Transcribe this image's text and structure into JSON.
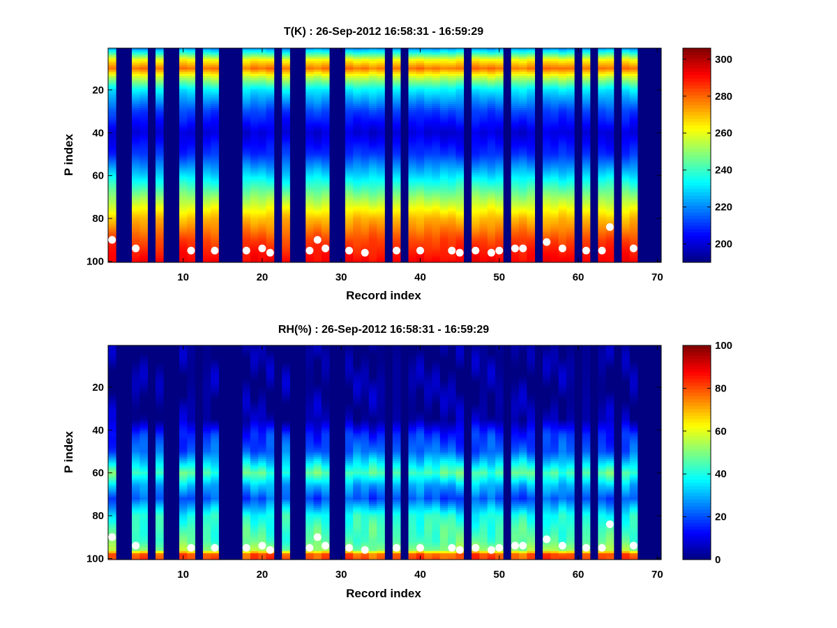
{
  "chart_data": [
    {
      "type": "heatmap",
      "title": "T(K) : 26-Sep-2012 16:58:31 - 16:59:29",
      "xlabel": "Record index",
      "ylabel": "P index",
      "xlim": [
        0.5,
        70.5
      ],
      "ylim": [
        0.5,
        100.5
      ],
      "y_reversed": true,
      "xticks": [
        10,
        20,
        30,
        40,
        50,
        60,
        70
      ],
      "yticks": [
        20,
        40,
        60,
        80,
        100
      ],
      "colormap": "jet",
      "clim": [
        190,
        306
      ],
      "colorbar_ticks": [
        200,
        220,
        240,
        260,
        280,
        300
      ],
      "valid_records": [
        1,
        4,
        5,
        7,
        10,
        11,
        13,
        14,
        18,
        19,
        20,
        21,
        23,
        26,
        27,
        28,
        31,
        32,
        33,
        34,
        35,
        37,
        39,
        40,
        41,
        42,
        43,
        44,
        45,
        47,
        48,
        49,
        50,
        52,
        53,
        54,
        56,
        57,
        58,
        59,
        61,
        63,
        64,
        66,
        67
      ],
      "profile_anchors": [
        {
          "p": 1,
          "value": 224
        },
        {
          "p": 6,
          "value": 262
        },
        {
          "p": 10,
          "value": 278
        },
        {
          "p": 14,
          "value": 256
        },
        {
          "p": 20,
          "value": 232
        },
        {
          "p": 30,
          "value": 212
        },
        {
          "p": 40,
          "value": 200
        },
        {
          "p": 50,
          "value": 210
        },
        {
          "p": 60,
          "value": 230
        },
        {
          "p": 70,
          "value": 250
        },
        {
          "p": 80,
          "value": 270
        },
        {
          "p": 90,
          "value": 284
        },
        {
          "p": 100,
          "value": 292
        }
      ],
      "surface_points": [
        {
          "x": 1,
          "y": 90
        },
        {
          "x": 4,
          "y": 94
        },
        {
          "x": 11,
          "y": 95
        },
        {
          "x": 14,
          "y": 95
        },
        {
          "x": 18,
          "y": 95
        },
        {
          "x": 20,
          "y": 94
        },
        {
          "x": 21,
          "y": 96
        },
        {
          "x": 26,
          "y": 95
        },
        {
          "x": 27,
          "y": 90
        },
        {
          "x": 28,
          "y": 94
        },
        {
          "x": 31,
          "y": 95
        },
        {
          "x": 33,
          "y": 96
        },
        {
          "x": 37,
          "y": 95
        },
        {
          "x": 40,
          "y": 95
        },
        {
          "x": 44,
          "y": 95
        },
        {
          "x": 45,
          "y": 96
        },
        {
          "x": 47,
          "y": 95
        },
        {
          "x": 49,
          "y": 96
        },
        {
          "x": 50,
          "y": 95
        },
        {
          "x": 52,
          "y": 94
        },
        {
          "x": 53,
          "y": 94
        },
        {
          "x": 56,
          "y": 91
        },
        {
          "x": 58,
          "y": 94
        },
        {
          "x": 61,
          "y": 95
        },
        {
          "x": 63,
          "y": 95
        },
        {
          "x": 64,
          "y": 84
        },
        {
          "x": 67,
          "y": 94
        }
      ]
    },
    {
      "type": "heatmap",
      "title": "RH(%) : 26-Sep-2012 16:58:31 - 16:59:29",
      "xlabel": "Record index",
      "ylabel": "P index",
      "xlim": [
        0.5,
        70.5
      ],
      "ylim": [
        0.5,
        100.5
      ],
      "y_reversed": true,
      "xticks": [
        10,
        20,
        30,
        40,
        50,
        60,
        70
      ],
      "yticks": [
        20,
        40,
        60,
        80,
        100
      ],
      "colormap": "jet",
      "clim": [
        0,
        100
      ],
      "colorbar_ticks": [
        0,
        20,
        40,
        60,
        80,
        100
      ],
      "valid_records": [
        1,
        4,
        5,
        7,
        10,
        11,
        13,
        14,
        18,
        19,
        20,
        21,
        23,
        26,
        27,
        28,
        31,
        32,
        33,
        34,
        35,
        37,
        39,
        40,
        41,
        42,
        43,
        44,
        45,
        47,
        48,
        49,
        50,
        52,
        53,
        54,
        56,
        57,
        58,
        59,
        61,
        63,
        64,
        66,
        67
      ],
      "profile_anchors": [
        {
          "p": 1,
          "value": 2
        },
        {
          "p": 35,
          "value": 4
        },
        {
          "p": 42,
          "value": 16
        },
        {
          "p": 50,
          "value": 22
        },
        {
          "p": 55,
          "value": 34
        },
        {
          "p": 60,
          "value": 46
        },
        {
          "p": 66,
          "value": 30
        },
        {
          "p": 72,
          "value": 20
        },
        {
          "p": 80,
          "value": 40
        },
        {
          "p": 86,
          "value": 44
        },
        {
          "p": 92,
          "value": 46
        },
        {
          "p": 96,
          "value": 52
        },
        {
          "p": 98,
          "value": 78
        },
        {
          "p": 100,
          "value": 80
        }
      ],
      "surface_points": [
        {
          "x": 1,
          "y": 90
        },
        {
          "x": 4,
          "y": 94
        },
        {
          "x": 11,
          "y": 95
        },
        {
          "x": 14,
          "y": 95
        },
        {
          "x": 18,
          "y": 95
        },
        {
          "x": 20,
          "y": 94
        },
        {
          "x": 21,
          "y": 96
        },
        {
          "x": 26,
          "y": 95
        },
        {
          "x": 27,
          "y": 90
        },
        {
          "x": 28,
          "y": 94
        },
        {
          "x": 31,
          "y": 95
        },
        {
          "x": 33,
          "y": 96
        },
        {
          "x": 37,
          "y": 95
        },
        {
          "x": 40,
          "y": 95
        },
        {
          "x": 44,
          "y": 95
        },
        {
          "x": 45,
          "y": 96
        },
        {
          "x": 47,
          "y": 95
        },
        {
          "x": 49,
          "y": 96
        },
        {
          "x": 50,
          "y": 95
        },
        {
          "x": 52,
          "y": 94
        },
        {
          "x": 53,
          "y": 94
        },
        {
          "x": 56,
          "y": 91
        },
        {
          "x": 58,
          "y": 94
        },
        {
          "x": 61,
          "y": 95
        },
        {
          "x": 63,
          "y": 95
        },
        {
          "x": 64,
          "y": 84
        },
        {
          "x": 67,
          "y": 94
        }
      ]
    }
  ]
}
